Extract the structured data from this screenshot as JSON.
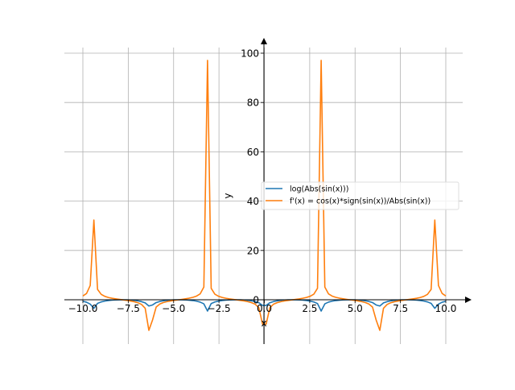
{
  "chart_data": {
    "type": "line",
    "title": "",
    "xlabel": "x",
    "ylabel": "y",
    "xlim": [
      -11,
      11
    ],
    "ylim": [
      -18,
      102
    ],
    "grid": true,
    "legend_position": "center-right",
    "x_ticks": [
      -10,
      -7.5,
      -5,
      -2.5,
      0,
      2.5,
      5,
      7.5,
      10
    ],
    "x_tick_labels": [
      "−10.0",
      "−7.5",
      "−5.0",
      "−2.5",
      "0.0",
      "2.5",
      "5.0",
      "7.5",
      "10.0"
    ],
    "y_ticks": [
      0,
      20,
      40,
      60,
      80,
      100
    ],
    "y_tick_labels": [
      "0",
      "20",
      "40",
      "60",
      "80",
      "100"
    ],
    "x_sampling": {
      "start": -10,
      "end": 10,
      "count": 100
    },
    "series": [
      {
        "name": "log(Abs(sin(x)))",
        "color": "#1f77b4",
        "values": [
          -0.609,
          -1.008,
          -1.77,
          -3.477,
          -1.467,
          -0.878,
          -0.528,
          -0.301,
          -0.15,
          -0.057,
          -0.009,
          -0.002,
          -0.037,
          -0.116,
          -0.248,
          -0.447,
          -0.762,
          -1.282,
          -2.521,
          -2.113,
          -1.131,
          -0.68,
          -0.402,
          -0.217,
          -0.098,
          -0.028,
          -0.001,
          -0.014,
          -0.072,
          -0.174,
          -0.334,
          -0.577,
          -0.957,
          -1.659,
          -4.576,
          -1.558,
          -0.91,
          -0.547,
          -0.314,
          -0.16,
          -0.062,
          -0.011,
          -0.002,
          -0.033,
          -0.11,
          -0.237,
          -0.431,
          -0.726,
          -1.209,
          -2.295,
          -2.295,
          -1.209,
          -0.726,
          -0.431,
          -0.237,
          -0.11,
          -0.033,
          -0.002,
          -0.011,
          -0.062,
          -0.16,
          -0.314,
          -0.547,
          -0.91,
          -1.558,
          -4.576,
          -1.659,
          -0.957,
          -0.577,
          -0.334,
          -0.174,
          -0.072,
          -0.014,
          -0.001,
          -0.028,
          -0.098,
          -0.217,
          -0.402,
          -0.68,
          -1.131,
          -2.113,
          -2.521,
          -1.282,
          -0.762,
          -0.447,
          -0.248,
          -0.116,
          -0.037,
          -0.002,
          -0.009,
          -0.057,
          -0.15,
          -0.301,
          -0.528,
          -0.878,
          -1.467,
          -3.477,
          -1.77,
          -1.008,
          -0.609
        ]
      },
      {
        "name": "f'(x) = cos(x)*sign(sin(x))/Abs(sin(x))",
        "color": "#ff7f0e",
        "values": [
          1.542,
          2.551,
          5.786,
          32.35,
          4.219,
          2.188,
          1.368,
          0.908,
          0.592,
          0.346,
          0.131,
          -0.067,
          -0.278,
          -0.511,
          -0.802,
          -1.201,
          -1.895,
          -3.462,
          -12.4,
          -8.21,
          -2.932,
          -1.701,
          -1.111,
          -0.738,
          -0.465,
          -0.239,
          -0.035,
          0.171,
          0.395,
          0.645,
          0.976,
          1.473,
          2.405,
          5.159,
          97.1,
          4.643,
          2.274,
          1.41,
          0.935,
          0.613,
          0.363,
          0.147,
          -0.056,
          -0.263,
          -0.495,
          -0.779,
          -1.17,
          -1.809,
          -3.198,
          -9.87,
          -9.87,
          -3.198,
          -1.809,
          -1.17,
          -0.779,
          -0.495,
          -0.263,
          -0.056,
          0.147,
          0.363,
          0.613,
          0.935,
          1.41,
          2.274,
          4.643,
          97.1,
          5.159,
          2.405,
          1.473,
          0.976,
          0.645,
          0.395,
          0.171,
          -0.035,
          -0.239,
          -0.465,
          -0.738,
          -1.111,
          -1.701,
          -2.932,
          -8.21,
          -12.4,
          -3.462,
          -1.895,
          -1.201,
          -0.802,
          -0.511,
          -0.278,
          -0.067,
          0.131,
          0.346,
          0.592,
          0.908,
          1.368,
          2.188,
          4.219,
          32.35,
          5.786,
          2.551,
          1.542
        ]
      }
    ]
  }
}
